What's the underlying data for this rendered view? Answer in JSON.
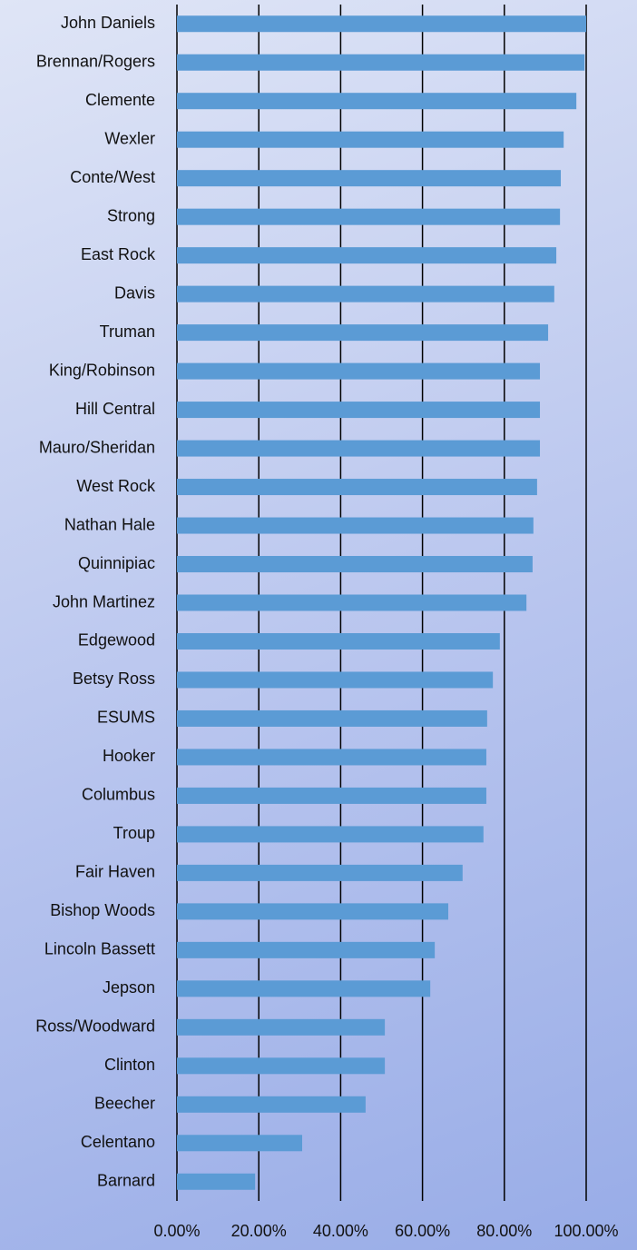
{
  "chart_data": {
    "type": "bar",
    "orientation": "horizontal",
    "categories": [
      "John Daniels",
      "Brennan/Rogers",
      "Clemente",
      "Wexler",
      "Conte/West",
      "Strong",
      "East Rock",
      "Davis",
      "Truman",
      "King/Robinson",
      "Hill Central",
      "Mauro/Sheridan",
      "West Rock",
      "Nathan Hale",
      "Quinnipiac",
      "John Martinez",
      "Edgewood",
      "Betsy Ross",
      "ESUMS",
      "Hooker",
      "Columbus",
      "Troup",
      "Fair Haven",
      "Bishop Woods",
      "Lincoln Bassett",
      "Jepson",
      "Ross/Woodward",
      "Clinton",
      "Beecher",
      "Celentano",
      "Barnard"
    ],
    "values": [
      100,
      99.6,
      97.6,
      94.5,
      93.8,
      93.6,
      92.7,
      92.2,
      90.7,
      88.7,
      88.7,
      88.7,
      88.0,
      87.1,
      86.9,
      85.4,
      78.9,
      77.2,
      75.8,
      75.6,
      75.6,
      74.9,
      69.8,
      66.3,
      63.0,
      61.9,
      50.8,
      50.8,
      46.1,
      30.6,
      19.1
    ],
    "color": "#5b9bd5",
    "xlim": [
      0,
      100
    ],
    "xticks": [
      {
        "value": 0,
        "label": "0.00%"
      },
      {
        "value": 20,
        "label": "20.00%"
      },
      {
        "value": 40,
        "label": "40.00%"
      },
      {
        "value": 60,
        "label": "60.00%"
      },
      {
        "value": 80,
        "label": "80.00%"
      },
      {
        "value": 100,
        "label": "100.00%"
      }
    ],
    "grid": true
  }
}
